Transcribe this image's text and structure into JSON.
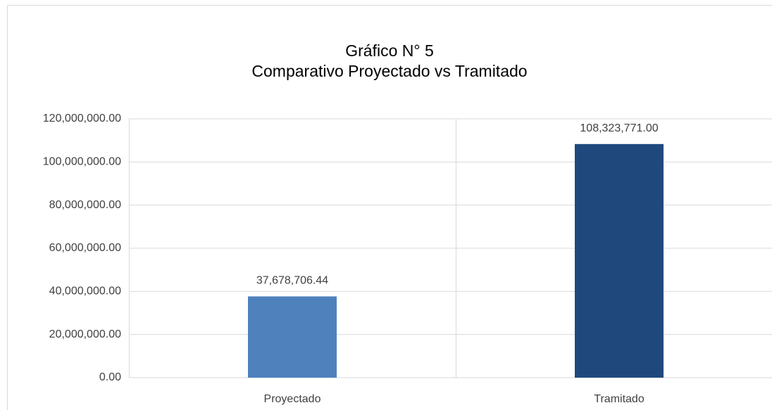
{
  "chart_data": {
    "type": "bar",
    "title": [
      "Gráfico N° 5",
      "Comparativo Proyectado vs Tramitado"
    ],
    "categories": [
      "Proyectado",
      "Tramitado"
    ],
    "values": [
      37678706.44,
      108323771.0
    ],
    "value_labels": [
      "37,678,706.44",
      "108,323,771.00"
    ],
    "colors": [
      "#4f81bd",
      "#1f497d"
    ],
    "ylim": [
      0,
      120000000
    ],
    "yticks": [
      {
        "value": 0,
        "label": "0.00"
      },
      {
        "value": 20000000,
        "label": "20,000,000.00"
      },
      {
        "value": 40000000,
        "label": "40,000,000.00"
      },
      {
        "value": 60000000,
        "label": "60,000,000.00"
      },
      {
        "value": 80000000,
        "label": "80,000,000.00"
      },
      {
        "value": 100000000,
        "label": "100,000,000.00"
      },
      {
        "value": 120000000,
        "label": "120,000,000.00"
      }
    ],
    "grid": true
  }
}
